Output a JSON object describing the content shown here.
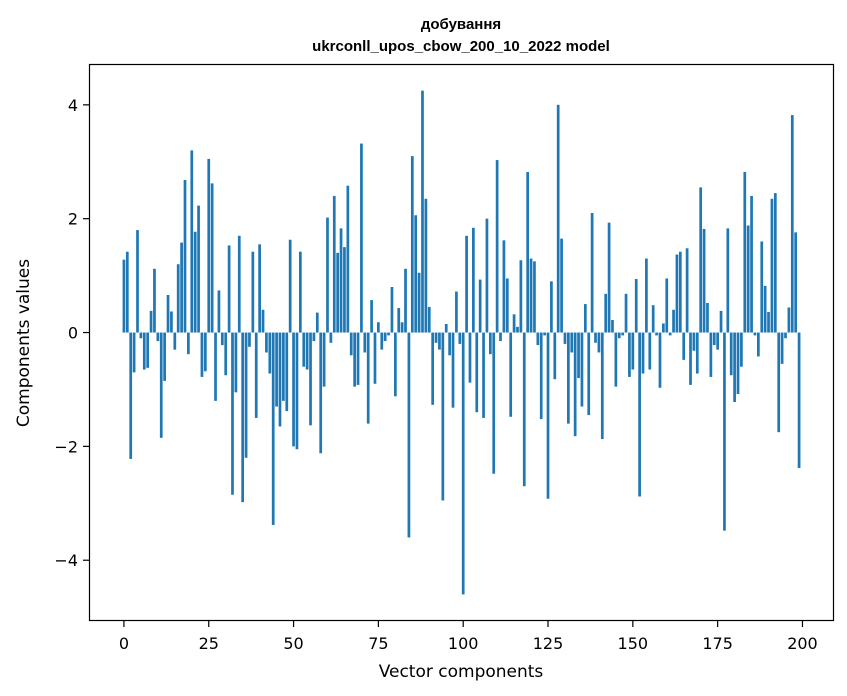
{
  "chart_data": {
    "type": "bar",
    "title": "добування",
    "subtitle": "ukrconll_upos_cbow_200_10_2022 model",
    "xlabel": "Vector components",
    "ylabel": "Components values",
    "xlim": [
      -10,
      209
    ],
    "ylim": [
      -5.05,
      4.7
    ],
    "xticks": [
      0,
      25,
      50,
      75,
      100,
      125,
      150,
      175,
      200
    ],
    "yticks": [
      -4,
      -2,
      0,
      2,
      4
    ],
    "grid": false,
    "color": "#1f77b4",
    "values": [
      1.28,
      1.42,
      -2.22,
      -0.7,
      1.8,
      -0.1,
      -0.65,
      -0.62,
      0.38,
      1.12,
      -0.15,
      -1.85,
      -0.85,
      0.66,
      0.37,
      -0.3,
      1.2,
      1.58,
      2.68,
      -0.38,
      3.2,
      1.77,
      2.23,
      -0.78,
      -0.68,
      3.05,
      2.62,
      -1.2,
      0.74,
      -0.22,
      -0.75,
      1.53,
      -2.85,
      -1.05,
      1.7,
      -2.98,
      -2.2,
      -0.25,
      1.42,
      -1.5,
      1.55,
      0.4,
      -0.35,
      -0.72,
      -3.38,
      -1.3,
      -1.65,
      -1.2,
      -1.38,
      1.63,
      -2.0,
      -2.05,
      1.42,
      -0.6,
      -0.65,
      -1.63,
      -0.15,
      0.35,
      -2.12,
      -0.95,
      2.02,
      -0.18,
      2.4,
      1.4,
      1.83,
      1.5,
      2.58,
      -0.4,
      -0.95,
      -0.92,
      3.32,
      -0.35,
      -1.6,
      0.57,
      -0.9,
      0.18,
      -0.3,
      -0.15,
      -0.05,
      0.8,
      -1.12,
      0.43,
      0.18,
      1.12,
      -3.6,
      3.1,
      2.06,
      1.05,
      4.25,
      2.35,
      0.45,
      -1.27,
      -0.18,
      -0.3,
      -2.95,
      0.15,
      -0.4,
      -1.32,
      0.72,
      -0.2,
      -4.6,
      1.7,
      -0.88,
      1.84,
      -1.4,
      0.93,
      -1.5,
      2.0,
      -0.38,
      -2.48,
      3.03,
      -0.15,
      1.62,
      0.95,
      -1.48,
      0.32,
      0.1,
      1.27,
      -2.7,
      2.82,
      1.3,
      1.25,
      -0.22,
      -1.52,
      -0.05,
      -2.92,
      0.9,
      -0.82,
      4.0,
      1.65,
      -0.2,
      -1.6,
      -0.35,
      -1.82,
      -0.8,
      -1.3,
      0.5,
      -1.45,
      2.1,
      -0.18,
      -0.35,
      -1.87,
      0.68,
      1.93,
      0.22,
      -0.95,
      -0.1,
      -0.05,
      0.68,
      -0.78,
      -0.65,
      0.94,
      -2.88,
      -0.72,
      1.3,
      -0.65,
      0.48,
      -0.05,
      -0.97,
      0.16,
      0.95,
      -0.05,
      0.4,
      1.37,
      1.42,
      -0.48,
      1.48,
      -0.92,
      -0.32,
      -0.72,
      2.55,
      1.82,
      0.52,
      -0.78,
      -0.22,
      -0.3,
      0.38,
      -3.48,
      1.83,
      -0.75,
      -1.22,
      -1.08,
      -0.6,
      2.82,
      1.88,
      2.4,
      -0.05,
      -0.42,
      1.6,
      0.82,
      0.36,
      2.35,
      2.45,
      -1.75,
      -0.55,
      -0.1,
      0.44,
      3.82,
      1.76,
      -2.38
    ]
  }
}
